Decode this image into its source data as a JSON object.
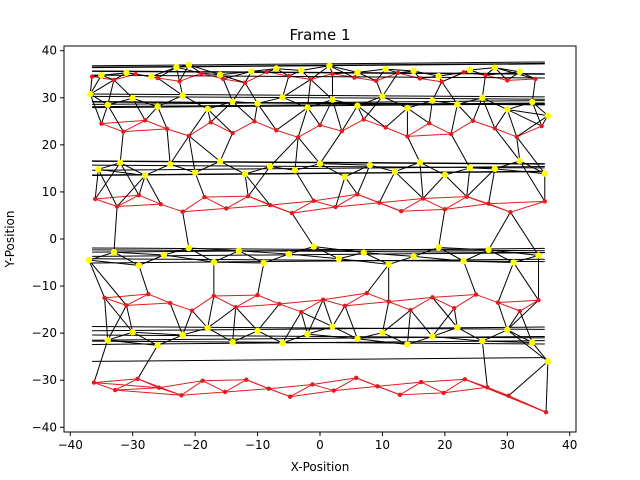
{
  "chart_data": {
    "type": "scatter",
    "title": "Frame 1",
    "xlabel": "X-Position",
    "ylabel": "Y-Position",
    "xlim": [
      -41,
      41
    ],
    "ylim": [
      -41,
      41
    ],
    "xticks": [
      -40,
      -30,
      -20,
      -10,
      0,
      10,
      20,
      30,
      40
    ],
    "yticks": [
      -40,
      -30,
      -20,
      -10,
      0,
      10,
      20,
      30,
      40
    ],
    "xtick_labels": [
      "−40",
      "−30",
      "−20",
      "−10",
      "0",
      "10",
      "20",
      "30",
      "40"
    ],
    "ytick_labels": [
      "−40",
      "−30",
      "−20",
      "−10",
      "0",
      "10",
      "20",
      "30",
      "40"
    ],
    "grid": false,
    "colors": {
      "red_nodes": "#e41a1c",
      "yellow_nodes": "#ffff00",
      "links": "#000000",
      "red_links": "#e41a1c"
    },
    "series": [
      {
        "color": "#e41a1c",
        "x": [
          -36.5,
          -33.0,
          -29.5,
          -26.0,
          -22.5,
          -19.0,
          -15.5,
          -12.0,
          -8.5,
          -5.0,
          -1.5,
          2.0,
          5.5,
          9.0,
          12.5,
          16.0,
          19.5,
          23.0,
          26.5,
          30.0,
          34.5,
          -35.0,
          -31.5,
          -28.0,
          -24.5,
          -21.0,
          -17.5,
          -14.0,
          -10.5,
          -7.0,
          -3.5,
          0.0,
          3.5,
          7.0,
          10.5,
          14.0,
          17.5,
          21.0,
          24.5,
          28.0,
          31.5,
          35.5,
          -36.0,
          -32.5,
          -29.0,
          -25.5,
          -22.0,
          -18.5,
          -15.0,
          -11.5,
          -8.0,
          -4.5,
          -1.0,
          2.5,
          6.0,
          9.5,
          13.0,
          16.5,
          20.0,
          23.5,
          27.0,
          30.5,
          36.0,
          -34.5,
          -31.0,
          -27.5,
          -24.0,
          -20.5,
          -17.0,
          -13.5,
          -10.0,
          -6.5,
          -3.0,
          0.5,
          4.0,
          7.5,
          11.0,
          14.5,
          18.0,
          21.5,
          25.0,
          28.5,
          32.0,
          35.0,
          -36.2,
          -32.8,
          -29.2,
          -25.8,
          -22.2,
          -18.8,
          -15.2,
          -11.8,
          -8.2,
          -4.8,
          -1.2,
          2.2,
          5.8,
          9.2,
          12.8,
          16.2,
          19.8,
          23.2,
          26.8,
          30.2,
          36.2
        ],
        "y": [
          34.5,
          33.8,
          35.0,
          34.2,
          33.5,
          35.2,
          34.0,
          33.2,
          35.5,
          34.6,
          33.9,
          35.1,
          34.3,
          33.6,
          35.3,
          34.1,
          33.4,
          35.4,
          34.8,
          33.7,
          34.0,
          24.5,
          22.8,
          25.2,
          23.4,
          21.9,
          24.8,
          22.5,
          25.0,
          23.1,
          21.6,
          24.2,
          22.9,
          25.4,
          23.7,
          21.8,
          24.6,
          22.3,
          25.1,
          23.5,
          21.7,
          24.0,
          8.5,
          6.9,
          9.3,
          7.4,
          5.8,
          8.9,
          6.5,
          9.1,
          7.2,
          5.5,
          8.1,
          6.8,
          9.5,
          7.7,
          5.9,
          8.6,
          6.3,
          9.0,
          7.5,
          5.7,
          8.0,
          -12.5,
          -14.1,
          -11.7,
          -13.6,
          -15.2,
          -12.1,
          -14.5,
          -11.9,
          -13.8,
          -15.5,
          -12.9,
          -14.2,
          -11.5,
          -13.3,
          -15.1,
          -12.4,
          -14.7,
          -11.8,
          -13.5,
          -15.3,
          -13.0,
          -30.5,
          -32.1,
          -29.7,
          -31.6,
          -33.2,
          -30.1,
          -32.5,
          -29.9,
          -31.8,
          -33.5,
          -30.9,
          -32.2,
          -29.5,
          -31.3,
          -33.1,
          -30.4,
          -32.7,
          -29.8,
          -31.5,
          -33.3,
          -36.8
        ]
      },
      {
        "color": "#ffff00",
        "x": [
          -35.0,
          -31.0,
          -27.0,
          -23.0,
          -21.0,
          -16.0,
          -11.0,
          -7.0,
          -3.0,
          1.5,
          6.0,
          10.5,
          15.0,
          19.0,
          24.0,
          28.0,
          32.0,
          36.5,
          -36.8,
          -34.0,
          -30.0,
          -26.0,
          -22.0,
          -18.0,
          -14.0,
          -10.0,
          -6.0,
          -2.0,
          2.0,
          6.0,
          10.0,
          14.0,
          18.0,
          22.0,
          26.0,
          30.0,
          34.0,
          -35.5,
          -32.0,
          -28.0,
          -24.0,
          -20.0,
          -16.0,
          -12.0,
          -8.0,
          -4.0,
          0.0,
          4.0,
          8.0,
          12.0,
          16.0,
          20.0,
          24.0,
          28.0,
          32.0,
          36.0,
          -37.0,
          -33.0,
          -29.0,
          -25.0,
          -21.0,
          -17.0,
          -13.0,
          -9.0,
          -5.0,
          -1.0,
          3.0,
          7.0,
          11.0,
          15.0,
          19.0,
          23.0,
          27.0,
          31.0,
          35.0,
          -34.0,
          -30.0,
          -26.0,
          -22.0,
          -18.0,
          -14.0,
          -10.0,
          -6.0,
          -2.0,
          2.0,
          6.0,
          10.0,
          14.0,
          18.0,
          22.0,
          26.0,
          30.0,
          34.0,
          36.5
        ],
        "y": [
          34.8,
          35.3,
          34.5,
          36.5,
          37.0,
          34.9,
          35.6,
          36.2,
          35.8,
          36.8,
          35.4,
          36.1,
          35.7,
          34.6,
          35.9,
          36.4,
          35.5,
          26.2,
          30.8,
          28.5,
          29.9,
          28.1,
          30.5,
          27.6,
          29.2,
          28.8,
          30.1,
          27.9,
          29.6,
          28.3,
          30.3,
          27.8,
          29.4,
          28.6,
          30.0,
          27.5,
          29.1,
          14.8,
          16.2,
          13.5,
          15.9,
          14.1,
          16.5,
          13.8,
          15.4,
          14.6,
          16.0,
          13.2,
          15.7,
          14.3,
          16.3,
          13.6,
          15.1,
          14.9,
          16.6,
          13.9,
          -4.5,
          -2.8,
          -5.6,
          -3.4,
          -1.9,
          -4.9,
          -2.5,
          -5.1,
          -3.2,
          -1.6,
          -4.2,
          -2.9,
          -5.4,
          -3.7,
          -1.8,
          -4.7,
          -2.3,
          -5.0,
          -3.5,
          -21.5,
          -19.8,
          -22.6,
          -20.4,
          -18.9,
          -21.9,
          -19.5,
          -22.1,
          -20.2,
          -18.6,
          -21.2,
          -19.9,
          -22.4,
          -20.7,
          -18.8,
          -21.7,
          -19.3,
          -22.0,
          -26.0
        ]
      }
    ]
  }
}
